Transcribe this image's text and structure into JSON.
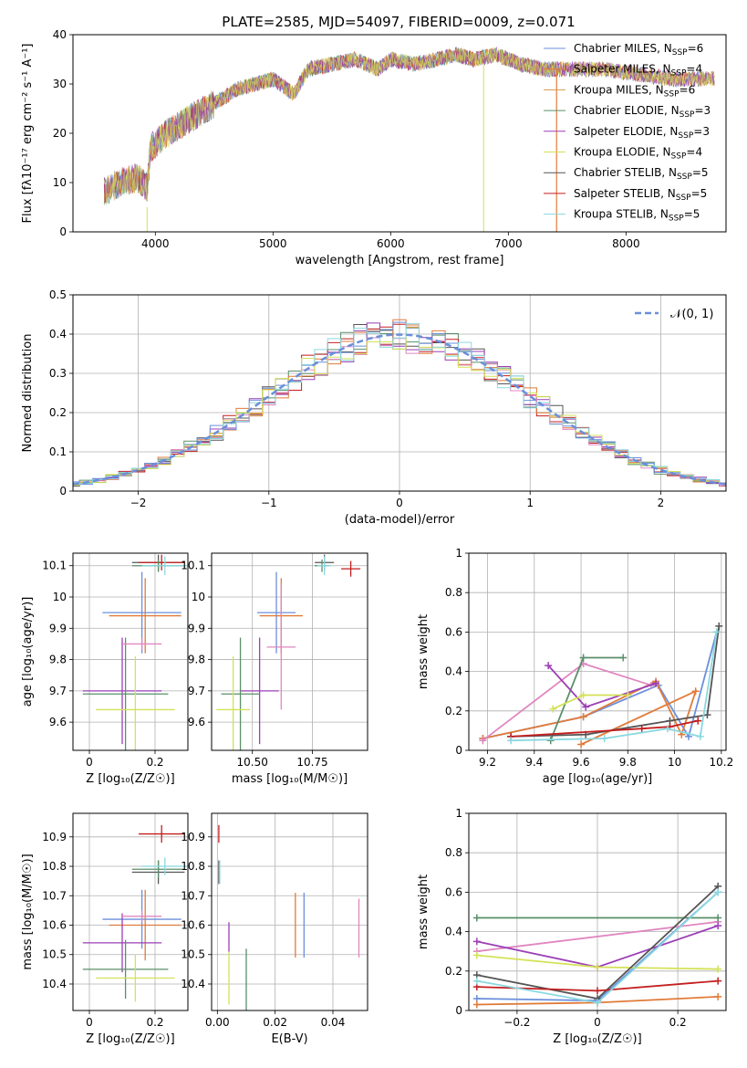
{
  "figure_title": "PLATE=2585, MJD=54097, FIBERID=0009, z=0.071",
  "colors": {
    "series": [
      "#6b8fdc",
      "#e07b39",
      "#d19a4a",
      "#5a8f6a",
      "#9b3fb5",
      "#d4e157",
      "#555555",
      "#c41e1e",
      "#8ad8e0"
    ],
    "extra": "#e087c0",
    "normal_curve": "#6a8fd8"
  },
  "chart_data": [
    {
      "id": "spectrum",
      "type": "line",
      "title": "PLATE=2585, MJD=54097, FIBERID=0009, z=0.071",
      "xlabel": "wavelength [Angstrom, rest frame]",
      "ylabel": "Flux [fλ10⁻¹⁷ erg cm⁻² s⁻¹ A⁻¹]",
      "xlim": [
        3300,
        8850
      ],
      "ylim": [
        0,
        40
      ],
      "xticks": [
        4000,
        5000,
        6000,
        7000,
        8000
      ],
      "yticks": [
        0,
        10,
        20,
        30,
        40
      ],
      "spectrum_x": [
        3560,
        3700,
        3850,
        3930,
        3960,
        4100,
        4300,
        4500,
        4700,
        4860,
        5000,
        5175,
        5300,
        5500,
        5700,
        5890,
        6000,
        6200,
        6400,
        6563,
        6700,
        6900,
        7100,
        7300,
        7500,
        7800,
        8100,
        8400,
        8700
      ],
      "spectrum_y": [
        8,
        10,
        11,
        9,
        17,
        20,
        23,
        26,
        29,
        30,
        31,
        28,
        33,
        34,
        35,
        33,
        35,
        34,
        35,
        36,
        35,
        36,
        34,
        33,
        33,
        33,
        32,
        31,
        31
      ],
      "legend": [
        {
          "label": "Chabrier MILES, N",
          "sub": "SSP",
          "suffix": "=6"
        },
        {
          "label": "Salpeter MILES, N",
          "sub": "SSP",
          "suffix": "=4"
        },
        {
          "label": "Kroupa MILES, N",
          "sub": "SSP",
          "suffix": "=6"
        },
        {
          "label": "Chabrier ELODIE, N",
          "sub": "SSP",
          "suffix": "=3"
        },
        {
          "label": "Salpeter ELODIE, N",
          "sub": "SSP",
          "suffix": "=3"
        },
        {
          "label": "Kroupa ELODIE, N",
          "sub": "SSP",
          "suffix": "=4"
        },
        {
          "label": "Chabrier STELIB, N",
          "sub": "SSP",
          "suffix": "=5"
        },
        {
          "label": "Salpeter STELIB, N",
          "sub": "SSP",
          "suffix": "=5"
        },
        {
          "label": "Kroupa STELIB, N",
          "sub": "SSP",
          "suffix": "=5"
        }
      ],
      "legend_position": "top-right"
    },
    {
      "id": "residuals",
      "type": "line",
      "xlabel": "(data-model)/error",
      "ylabel": "Normed distribution",
      "xlim": [
        -2.5,
        2.5
      ],
      "ylim": [
        0,
        0.5
      ],
      "xticks": [
        -2,
        -1,
        0,
        1,
        2
      ],
      "yticks": [
        0.0,
        0.1,
        0.2,
        0.3,
        0.4,
        0.5
      ],
      "grid": true,
      "bin_width": 0.1,
      "legend": [
        {
          "label": "𝒩(0, 1)",
          "style": "dashed"
        }
      ],
      "legend_position": "top-right"
    },
    {
      "id": "age-vs-z",
      "type": "scatter",
      "xlabel": "Z [log₁₀(Z/Z☉)]",
      "ylabel": "age  [log₁₀(age/yr)]",
      "xlim": [
        -0.05,
        0.3
      ],
      "ylim": [
        9.51,
        10.14
      ],
      "xticks": [
        0.0,
        0.2
      ],
      "yticks": [
        9.6,
        9.7,
        9.8,
        9.9,
        10.0,
        10.1
      ],
      "grid": true,
      "points": [
        {
          "x": 0.16,
          "y": 9.95,
          "xerr": 0.12,
          "yerr": 0.13,
          "c": 0
        },
        {
          "x": 0.17,
          "y": 9.94,
          "xerr": 0.11,
          "yerr": 0.12,
          "c": 1
        },
        {
          "x": 0.1,
          "y": 9.7,
          "xerr": 0.12,
          "yerr": 0.17,
          "c": 4
        },
        {
          "x": 0.11,
          "y": 9.69,
          "xerr": 0.13,
          "yerr": 0.18,
          "c": 3
        },
        {
          "x": 0.14,
          "y": 9.64,
          "xerr": 0.12,
          "yerr": 0.17,
          "c": 5
        },
        {
          "x": 0.21,
          "y": 10.11,
          "xerr": 0.08,
          "yerr": 0.025,
          "c": 6
        },
        {
          "x": 0.22,
          "y": 10.11,
          "xerr": 0.07,
          "yerr": 0.025,
          "c": 7
        },
        {
          "x": 0.21,
          "y": 10.1,
          "xerr": 0.08,
          "yerr": 0.02,
          "c": 3
        },
        {
          "x": 0.23,
          "y": 10.1,
          "xerr": 0.07,
          "yerr": 0.03,
          "c": 8
        },
        {
          "x": 0.16,
          "y": 9.85,
          "xerr": 0.06,
          "yerr": 0.02,
          "c": 9
        }
      ]
    },
    {
      "id": "age-vs-mass",
      "type": "scatter",
      "xlabel": "mass [log₁₀(M/M☉)]",
      "xlim": [
        10.33,
        10.98
      ],
      "ylim": [
        9.51,
        10.14
      ],
      "xticks": [
        10.5,
        10.75
      ],
      "xtick_labels": [
        "10.50",
        "10.75"
      ],
      "yticks": [
        9.6,
        9.7,
        9.8,
        9.9,
        10.0,
        10.1
      ],
      "grid": true,
      "points": [
        {
          "x": 10.6,
          "y": 9.95,
          "xerr": 0.08,
          "yerr": 0.13,
          "c": 0
        },
        {
          "x": 10.62,
          "y": 9.94,
          "xerr": 0.09,
          "yerr": 0.12,
          "c": 1
        },
        {
          "x": 10.53,
          "y": 9.7,
          "xerr": 0.08,
          "yerr": 0.17,
          "c": 4
        },
        {
          "x": 10.45,
          "y": 9.69,
          "xerr": 0.08,
          "yerr": 0.18,
          "c": 3
        },
        {
          "x": 10.42,
          "y": 9.64,
          "xerr": 0.07,
          "yerr": 0.17,
          "c": 5
        },
        {
          "x": 10.8,
          "y": 10.11,
          "xerr": 0.04,
          "yerr": 0.025,
          "c": 6
        },
        {
          "x": 10.91,
          "y": 10.09,
          "xerr": 0.04,
          "yerr": 0.025,
          "c": 7
        },
        {
          "x": 10.79,
          "y": 10.1,
          "xerr": 0.03,
          "yerr": 0.02,
          "c": 3
        },
        {
          "x": 10.8,
          "y": 10.1,
          "xerr": 0.03,
          "yerr": 0.03,
          "c": 8
        },
        {
          "x": 10.62,
          "y": 9.84,
          "xerr": 0.06,
          "yerr": 0.2,
          "c": 9
        }
      ]
    },
    {
      "id": "mass-weight-vs-age",
      "type": "line",
      "xlabel": "age  [log₁₀(age/yr)]",
      "ylabel": "mass weight",
      "xlim": [
        9.12,
        10.22
      ],
      "ylim": [
        0.0,
        1.0
      ],
      "xticks": [
        9.2,
        9.4,
        9.6,
        9.8,
        10.0,
        10.2
      ],
      "yticks": [
        0.0,
        0.2,
        0.4,
        0.6,
        0.8,
        1.0
      ],
      "grid": true,
      "series": [
        {
          "c": 0,
          "x": [
            9.18,
            9.61,
            9.93,
            10.06,
            10.18
          ],
          "y": [
            0.06,
            0.17,
            0.33,
            0.07,
            0.6
          ]
        },
        {
          "c": 1,
          "x": [
            9.18,
            9.61,
            9.92,
            10.03,
            10.09,
            9.6
          ],
          "y": [
            0.06,
            0.17,
            0.35,
            0.08,
            0.3,
            0.03
          ]
        },
        {
          "c": 9,
          "x": [
            9.18,
            9.61,
            9.9
          ],
          "y": [
            0.05,
            0.44,
            0.33
          ]
        },
        {
          "c": 3,
          "x": [
            9.47,
            9.61,
            9.78
          ],
          "y": [
            0.05,
            0.47,
            0.47
          ]
        },
        {
          "c": 4,
          "x": [
            9.46,
            9.62,
            9.92
          ],
          "y": [
            0.43,
            0.22,
            0.34
          ]
        },
        {
          "c": 5,
          "x": [
            9.48,
            9.61,
            9.8
          ],
          "y": [
            0.21,
            0.28,
            0.28
          ]
        },
        {
          "c": 6,
          "x": [
            9.3,
            9.62,
            9.98,
            10.14,
            10.19
          ],
          "y": [
            0.07,
            0.08,
            0.15,
            0.18,
            0.63
          ]
        },
        {
          "c": 7,
          "x": [
            9.3,
            9.86,
            9.98,
            10.1
          ],
          "y": [
            0.07,
            0.11,
            0.12,
            0.15
          ]
        },
        {
          "c": 8,
          "x": [
            9.3,
            9.7,
            9.97,
            10.11,
            10.18
          ],
          "y": [
            0.05,
            0.06,
            0.11,
            0.07,
            0.6
          ]
        }
      ]
    },
    {
      "id": "mass-vs-z",
      "type": "scatter",
      "xlabel": "Z [log₁₀(Z/Z☉)]",
      "ylabel": "mass [log₁₀(M/M☉)]",
      "xlim": [
        -0.05,
        0.3
      ],
      "ylim": [
        10.31,
        10.98
      ],
      "xticks": [
        0.0,
        0.2
      ],
      "yticks": [
        10.4,
        10.5,
        10.6,
        10.7,
        10.8,
        10.9
      ],
      "grid": true,
      "points": [
        {
          "x": 0.16,
          "y": 10.62,
          "xerr": 0.12,
          "yerr": 0.1,
          "c": 0
        },
        {
          "x": 0.17,
          "y": 10.6,
          "xerr": 0.11,
          "yerr": 0.12,
          "c": 1
        },
        {
          "x": 0.1,
          "y": 10.54,
          "xerr": 0.12,
          "yerr": 0.1,
          "c": 4
        },
        {
          "x": 0.11,
          "y": 10.45,
          "xerr": 0.13,
          "yerr": 0.1,
          "c": 3
        },
        {
          "x": 0.14,
          "y": 10.42,
          "xerr": 0.12,
          "yerr": 0.08,
          "c": 5
        },
        {
          "x": 0.21,
          "y": 10.78,
          "xerr": 0.08,
          "yerr": 0.04,
          "c": 6
        },
        {
          "x": 0.22,
          "y": 10.91,
          "xerr": 0.07,
          "yerr": 0.03,
          "c": 7
        },
        {
          "x": 0.21,
          "y": 10.79,
          "xerr": 0.08,
          "yerr": 0.03,
          "c": 3
        },
        {
          "x": 0.23,
          "y": 10.8,
          "xerr": 0.07,
          "yerr": 0.03,
          "c": 8
        },
        {
          "x": 0.16,
          "y": 10.63,
          "xerr": 0.06,
          "yerr": 0.02,
          "c": 9
        }
      ]
    },
    {
      "id": "mass-vs-ebv",
      "type": "scatter",
      "xlabel": "E(B-V)",
      "xlim": [
        -0.002,
        0.052
      ],
      "ylim": [
        10.31,
        10.98
      ],
      "xticks": [
        0.0,
        0.02,
        0.04
      ],
      "xtick_labels": [
        "0.00",
        "0.02",
        "0.04"
      ],
      "yticks": [
        10.4,
        10.5,
        10.6,
        10.7,
        10.8,
        10.9
      ],
      "grid": true,
      "points": [
        {
          "x": 0.03,
          "y": 10.6,
          "xerr": 0,
          "yerr": 0.11,
          "c": 0
        },
        {
          "x": 0.027,
          "y": 10.6,
          "xerr": 0,
          "yerr": 0.11,
          "c": 1
        },
        {
          "x": 0.004,
          "y": 10.56,
          "xerr": 0,
          "yerr": 0.05,
          "c": 4
        },
        {
          "x": 0.01,
          "y": 10.4,
          "xerr": 0,
          "yerr": 0.12,
          "c": 3
        },
        {
          "x": 0.004,
          "y": 10.42,
          "xerr": 0,
          "yerr": 0.09,
          "c": 5
        },
        {
          "x": 0.0005,
          "y": 10.78,
          "xerr": 0,
          "yerr": 0.04,
          "c": 6
        },
        {
          "x": 0.0005,
          "y": 10.91,
          "xerr": 0,
          "yerr": 0.03,
          "c": 7
        },
        {
          "x": 0.0008,
          "y": 10.79,
          "xerr": 0,
          "yerr": 0.03,
          "c": 3
        },
        {
          "x": 0.0008,
          "y": 10.78,
          "xerr": 0,
          "yerr": 0.04,
          "c": 8
        },
        {
          "x": 0.049,
          "y": 10.59,
          "xerr": 0,
          "yerr": 0.1,
          "c": 9
        }
      ]
    },
    {
      "id": "mass-weight-vs-z",
      "type": "line",
      "xlabel": "Z [log₁₀(Z/Z☉)]",
      "ylabel": "mass weight",
      "xlim": [
        -0.32,
        0.32
      ],
      "ylim": [
        0.0,
        1.0
      ],
      "xticks": [
        -0.2,
        0.0,
        0.2
      ],
      "yticks": [
        0.0,
        0.2,
        0.4,
        0.6,
        0.8,
        1.0
      ],
      "grid": true,
      "series": [
        {
          "c": 0,
          "x": [
            -0.3,
            0.0,
            0.3
          ],
          "y": [
            0.06,
            0.05,
            0.6
          ]
        },
        {
          "c": 1,
          "x": [
            -0.3,
            0.0,
            0.3
          ],
          "y": [
            0.03,
            0.04,
            0.07
          ]
        },
        {
          "c": 9,
          "x": [
            -0.3,
            0.3
          ],
          "y": [
            0.3,
            0.45
          ]
        },
        {
          "c": 3,
          "x": [
            -0.3,
            0.3
          ],
          "y": [
            0.47,
            0.47
          ]
        },
        {
          "c": 4,
          "x": [
            -0.3,
            0.0,
            0.3
          ],
          "y": [
            0.35,
            0.22,
            0.43
          ]
        },
        {
          "c": 5,
          "x": [
            -0.3,
            0.0,
            0.3
          ],
          "y": [
            0.28,
            0.22,
            0.21
          ]
        },
        {
          "c": 6,
          "x": [
            -0.3,
            0.0,
            0.3
          ],
          "y": [
            0.18,
            0.06,
            0.63
          ]
        },
        {
          "c": 7,
          "x": [
            -0.3,
            0.0,
            0.3
          ],
          "y": [
            0.12,
            0.1,
            0.15
          ]
        },
        {
          "c": 8,
          "x": [
            -0.3,
            0.0,
            0.3
          ],
          "y": [
            0.15,
            0.04,
            0.6
          ]
        }
      ]
    }
  ]
}
